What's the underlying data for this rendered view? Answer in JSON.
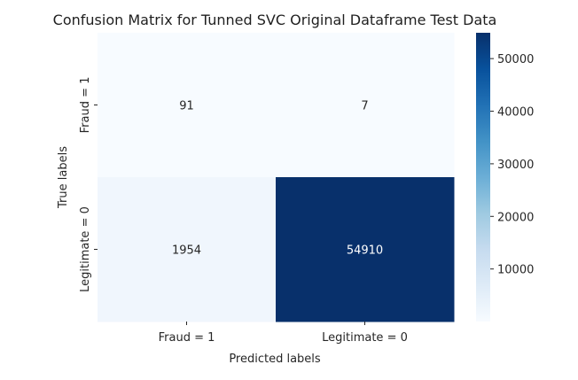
{
  "chart_data": {
    "type": "heatmap",
    "title": "Confusion Matrix for Tunned SVC Original Dataframe Test Data",
    "xlabel": "Predicted labels",
    "ylabel": "True labels",
    "x_categories": [
      "Fraud = 1",
      "Legitimate = 0"
    ],
    "y_categories": [
      "Fraud = 1",
      "Legitimate = 0"
    ],
    "values": [
      [
        91,
        7
      ],
      [
        1954,
        54910
      ]
    ],
    "colormap": "Blues",
    "color_low": "#f7fbff",
    "color_high": "#08306b",
    "colorbar_range": [
      7,
      54910
    ],
    "colorbar_ticks": [
      10000,
      20000,
      30000,
      40000,
      50000
    ]
  }
}
